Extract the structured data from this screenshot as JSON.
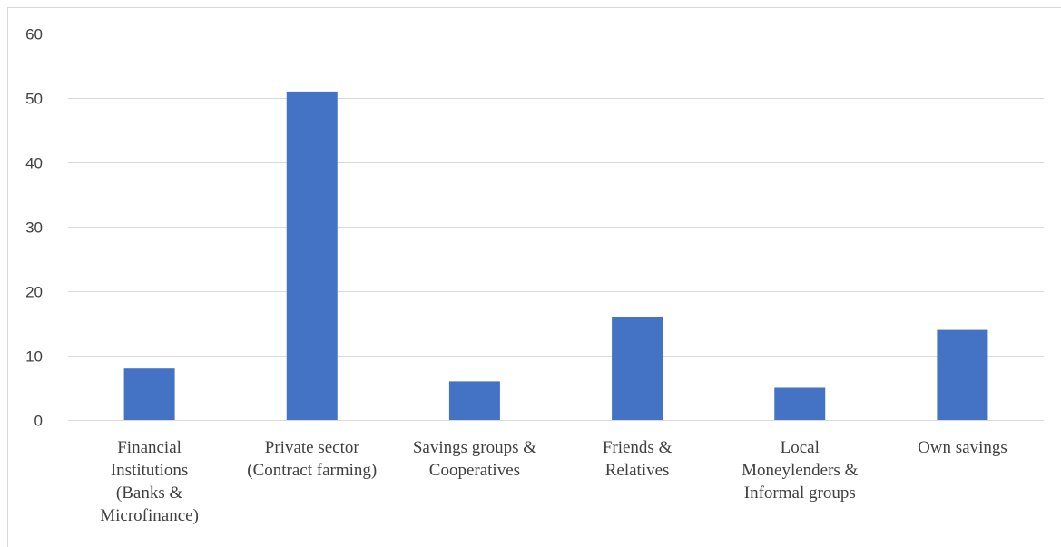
{
  "chart_data": {
    "type": "bar",
    "categories": [
      [
        "Financial",
        "Institutions",
        "(Banks &",
        "Microfinance)"
      ],
      [
        "Private sector",
        "(Contract farming)"
      ],
      [
        "Savings groups &",
        "Cooperatives"
      ],
      [
        "Friends &",
        "Relatives"
      ],
      [
        "Local",
        "Moneylenders &",
        "Informal groups"
      ],
      [
        "Own savings"
      ]
    ],
    "values": [
      8,
      51,
      6,
      16,
      5,
      14
    ],
    "yticks": [
      "0",
      "10",
      "20",
      "30",
      "40",
      "50",
      "60"
    ],
    "ylim": [
      0,
      60
    ],
    "grid": true,
    "bar_color": "#4472C4",
    "grid_color": "#D9D9D9",
    "title": "",
    "xlabel": "",
    "ylabel": ""
  }
}
